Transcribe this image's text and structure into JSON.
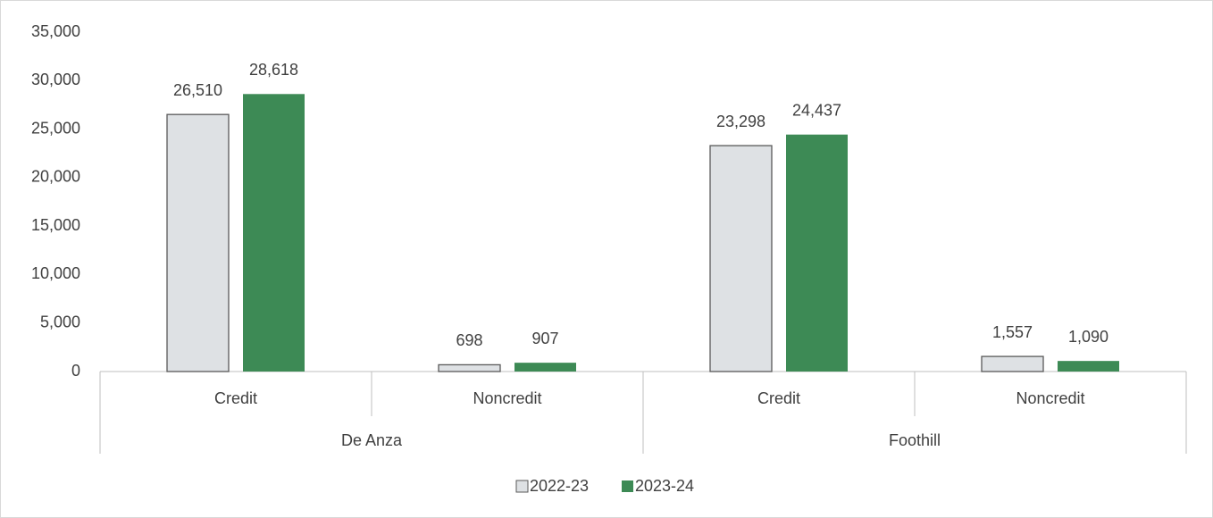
{
  "chart_data": {
    "type": "bar",
    "categories": [
      "Credit",
      "Noncredit",
      "Credit",
      "Noncredit"
    ],
    "groups": [
      "De Anza",
      "Foothill"
    ],
    "series": [
      {
        "name": "2022-23",
        "color": "#dee1e4",
        "values": [
          26510,
          698,
          23298,
          1557
        ],
        "value_labels": [
          "26,510",
          "698",
          "23,298",
          "1,557"
        ]
      },
      {
        "name": "2023-24",
        "color": "#3d8a55",
        "values": [
          28618,
          907,
          24437,
          1090
        ],
        "value_labels": [
          "28,618",
          "907",
          "24,437",
          "1,090"
        ]
      }
    ],
    "ylim": [
      0,
      35000
    ],
    "yticks": [
      0,
      {
        "value": 5000,
        "label": "5,000"
      },
      {
        "value": 10000,
        "label": "10,000"
      },
      {
        "value": 15000,
        "label": "15,000"
      },
      {
        "value": 20000,
        "label": "20,000"
      },
      {
        "value": 25000,
        "label": "25,000"
      },
      {
        "value": 30000,
        "label": "30,000"
      },
      {
        "value": 35000,
        "label": "35,000"
      }
    ],
    "grid": false,
    "legend": "bottom"
  }
}
